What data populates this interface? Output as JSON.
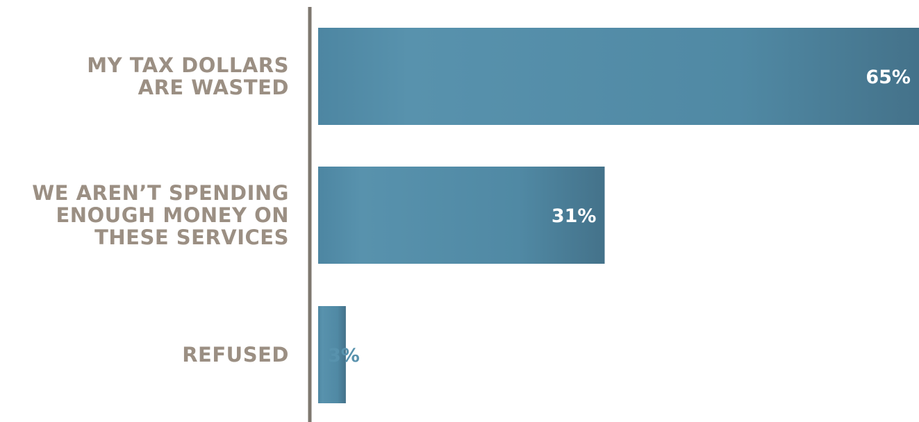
{
  "chart_data": {
    "type": "bar",
    "orientation": "horizontal",
    "title": "",
    "xlabel": "",
    "ylabel": "",
    "categories": [
      "MY TAX DOLLARS\nARE WASTED",
      "WE AREN’T SPENDING\nENOUGH MONEY ON\nTHESE SERVICES",
      "REFUSED"
    ],
    "values": [
      65,
      31,
      3
    ],
    "value_labels": [
      "65%",
      "31%",
      "3%"
    ],
    "xlim": [
      0,
      65
    ],
    "grid": false,
    "legend": "none"
  },
  "colors": {
    "bar_light": "#5892ad",
    "bar_dark": "#46738a",
    "bar_mid": "#508aa5",
    "axis": "#7e776f",
    "category_text": "#9b8f83",
    "value_text_inside": "#ffffff",
    "value_text_outside": "#5892ad"
  }
}
